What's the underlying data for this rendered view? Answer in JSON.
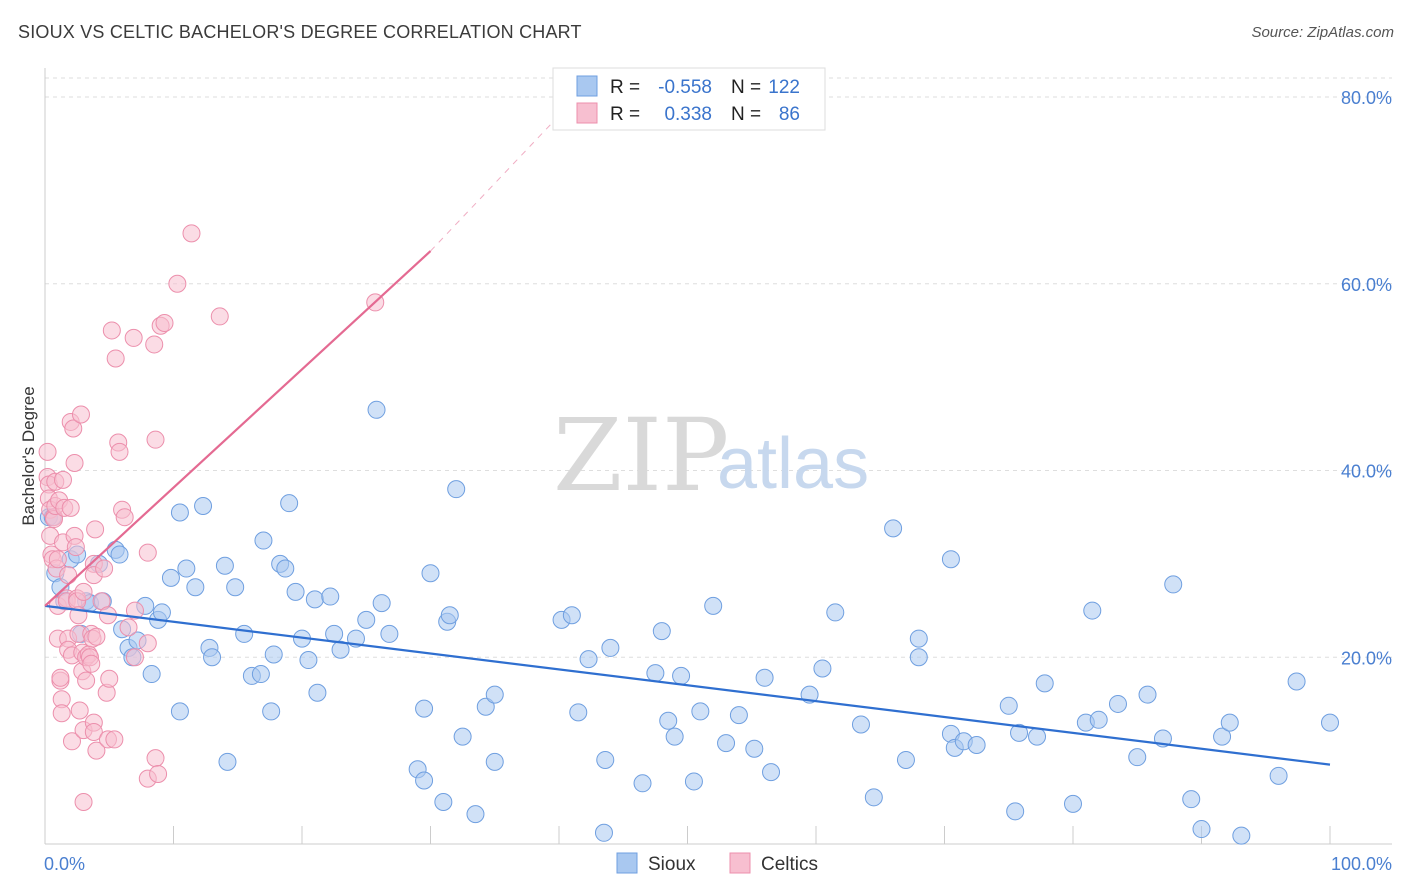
{
  "title": "SIOUX VS CELTIC BACHELOR'S DEGREE CORRELATION CHART",
  "source": "Source: ZipAtlas.com",
  "watermark": {
    "zip": "ZIP",
    "atlas": "atlas"
  },
  "legend": {
    "rows": [
      {
        "r_label": "R =",
        "r_value": "-0.558",
        "n_label": "N =",
        "n_value": "122",
        "color": "#a9c8f0",
        "stroke": "#6f9fe0"
      },
      {
        "r_label": "R =",
        "r_value": "0.338",
        "n_label": "N =",
        "n_value": "86",
        "color": "#f7bfd0",
        "stroke": "#ec8fac"
      }
    ]
  },
  "bottom_legend": [
    {
      "label": "Sioux",
      "color": "#a9c8f0",
      "stroke": "#6f9fe0"
    },
    {
      "label": "Celtics",
      "color": "#f7bfd0",
      "stroke": "#ec8fac"
    }
  ],
  "chart_data": {
    "type": "scatter",
    "title": "SIOUX VS CELTIC BACHELOR'S DEGREE CORRELATION CHART",
    "xlabel": "",
    "ylabel": "Bachelor's Degree",
    "xlim": [
      0,
      100
    ],
    "ylim": [
      0,
      82
    ],
    "x_tick_labels": [
      "0.0%",
      "100.0%"
    ],
    "y_ticks": [
      20,
      40,
      60,
      80
    ],
    "y_tick_labels": [
      "20.0%",
      "40.0%",
      "60.0%",
      "80.0%"
    ],
    "grid": true,
    "legend_position": "top-center",
    "series": [
      {
        "name": "Sioux",
        "color": "#a9c8f0",
        "stroke": "#6f9fe0",
        "r": -0.558,
        "n": 122,
        "trend": {
          "x": [
            0,
            100
          ],
          "y": [
            25.5,
            8.5
          ],
          "color": "#2f6fd0"
        },
        "points": [
          [
            0.3,
            35
          ],
          [
            0.6,
            35
          ],
          [
            0.8,
            29
          ],
          [
            1.2,
            27.5
          ],
          [
            1.5,
            26
          ],
          [
            2,
            30.5
          ],
          [
            2.5,
            31
          ],
          [
            2.8,
            22.5
          ],
          [
            3.2,
            26
          ],
          [
            3.5,
            25.8
          ],
          [
            4.2,
            30
          ],
          [
            4.5,
            26
          ],
          [
            5.5,
            31.5
          ],
          [
            5.8,
            31
          ],
          [
            6,
            23
          ],
          [
            6.5,
            21
          ],
          [
            6.8,
            20
          ],
          [
            7.2,
            21.8
          ],
          [
            7.8,
            25.5
          ],
          [
            8.3,
            18.2
          ],
          [
            8.8,
            24
          ],
          [
            9.1,
            24.8
          ],
          [
            9.8,
            28.5
          ],
          [
            10.5,
            14.2
          ],
          [
            10.5,
            35.5
          ],
          [
            11,
            29.5
          ],
          [
            11.7,
            27.5
          ],
          [
            12.3,
            36.2
          ],
          [
            12.8,
            21
          ],
          [
            13,
            20
          ],
          [
            14,
            29.8
          ],
          [
            14.2,
            8.8
          ],
          [
            14.8,
            27.5
          ],
          [
            15.5,
            22.5
          ],
          [
            16.1,
            18
          ],
          [
            16.8,
            18.2
          ],
          [
            17,
            32.5
          ],
          [
            17.6,
            14.2
          ],
          [
            17.8,
            20.3
          ],
          [
            18.3,
            30
          ],
          [
            18.7,
            29.5
          ],
          [
            19,
            36.5
          ],
          [
            19.5,
            27
          ],
          [
            20,
            22
          ],
          [
            20.5,
            19.7
          ],
          [
            21,
            26.2
          ],
          [
            21.2,
            16.2
          ],
          [
            22.2,
            26.5
          ],
          [
            22.5,
            22.5
          ],
          [
            23,
            20.8
          ],
          [
            24.2,
            22
          ],
          [
            25,
            24
          ],
          [
            25.8,
            46.5
          ],
          [
            26.2,
            25.8
          ],
          [
            26.8,
            22.5
          ],
          [
            29,
            8
          ],
          [
            29.5,
            6.8
          ],
          [
            29.5,
            14.5
          ],
          [
            30,
            29
          ],
          [
            31,
            4.5
          ],
          [
            31.3,
            23.8
          ],
          [
            31.5,
            24.5
          ],
          [
            32,
            38
          ],
          [
            32.5,
            11.5
          ],
          [
            33.5,
            3.2
          ],
          [
            34.3,
            14.7
          ],
          [
            35,
            16
          ],
          [
            35,
            8.8
          ],
          [
            40.2,
            24
          ],
          [
            41,
            24.5
          ],
          [
            41.5,
            14.1
          ],
          [
            42.3,
            19.8
          ],
          [
            43.5,
            1.2
          ],
          [
            43.6,
            9
          ],
          [
            44,
            21
          ],
          [
            46.5,
            6.5
          ],
          [
            47.5,
            18.3
          ],
          [
            48,
            22.8
          ],
          [
            48.5,
            13.2
          ],
          [
            49,
            11.5
          ],
          [
            49.5,
            18
          ],
          [
            50.5,
            6.7
          ],
          [
            51,
            14.2
          ],
          [
            52,
            25.5
          ],
          [
            53,
            10.8
          ],
          [
            54,
            13.8
          ],
          [
            55.2,
            10.2
          ],
          [
            56,
            17.8
          ],
          [
            56.5,
            7.7
          ],
          [
            59.5,
            16
          ],
          [
            60.5,
            18.8
          ],
          [
            61.5,
            24.8
          ],
          [
            63.5,
            12.8
          ],
          [
            64.5,
            5
          ],
          [
            66,
            33.8
          ],
          [
            67,
            9
          ],
          [
            68,
            22
          ],
          [
            68,
            20
          ],
          [
            70.5,
            30.5
          ],
          [
            70.5,
            11.8
          ],
          [
            70.8,
            10.3
          ],
          [
            71.5,
            11
          ],
          [
            72.5,
            10.6
          ],
          [
            75,
            14.8
          ],
          [
            75.5,
            3.5
          ],
          [
            75.8,
            11.9
          ],
          [
            77.2,
            11.5
          ],
          [
            77.8,
            17.2
          ],
          [
            80,
            4.3
          ],
          [
            81,
            13
          ],
          [
            81.5,
            25
          ],
          [
            82,
            13.3
          ],
          [
            83.5,
            15
          ],
          [
            85,
            9.3
          ],
          [
            85.8,
            16
          ],
          [
            87,
            11.3
          ],
          [
            87.8,
            27.8
          ],
          [
            89.2,
            4.8
          ],
          [
            90,
            1.6
          ],
          [
            91.6,
            11.5
          ],
          [
            92.2,
            13
          ],
          [
            93.1,
            0.9
          ],
          [
            96,
            7.3
          ],
          [
            97.4,
            17.4
          ],
          [
            100,
            13
          ]
        ]
      },
      {
        "name": "Celtics",
        "color": "#f7bfd0",
        "stroke": "#ec8fac",
        "r": 0.338,
        "n": 86,
        "trend": {
          "x": [
            0,
            30
          ],
          "y": [
            25.5,
            63.5
          ],
          "dash_x": [
            30,
            40
          ],
          "dash_y": [
            63.5,
            78
          ],
          "color": "#e46a92"
        },
        "points": [
          [
            0.2,
            42
          ],
          [
            0.2,
            39.3
          ],
          [
            0.3,
            38.5
          ],
          [
            0.3,
            37
          ],
          [
            0.4,
            35.8
          ],
          [
            0.4,
            33
          ],
          [
            0.5,
            31
          ],
          [
            0.6,
            30.5
          ],
          [
            0.7,
            35
          ],
          [
            0.7,
            34.8
          ],
          [
            0.8,
            36.2
          ],
          [
            0.8,
            38.8
          ],
          [
            0.9,
            29.5
          ],
          [
            1,
            30.5
          ],
          [
            1,
            25.5
          ],
          [
            1,
            22
          ],
          [
            1.1,
            36.8
          ],
          [
            1.2,
            17.5
          ],
          [
            1.2,
            17.8
          ],
          [
            1.3,
            15.5
          ],
          [
            1.3,
            14
          ],
          [
            1.4,
            39
          ],
          [
            1.4,
            32.3
          ],
          [
            1.5,
            36
          ],
          [
            1.7,
            26.3
          ],
          [
            1.7,
            26
          ],
          [
            1.8,
            28.8
          ],
          [
            1.8,
            22
          ],
          [
            1.8,
            20.8
          ],
          [
            2,
            45.2
          ],
          [
            2,
            36
          ],
          [
            2.1,
            20.2
          ],
          [
            2.1,
            11
          ],
          [
            2.2,
            44.5
          ],
          [
            2.3,
            40.8
          ],
          [
            2.3,
            33
          ],
          [
            2.4,
            31.8
          ],
          [
            2.5,
            26.3
          ],
          [
            2.5,
            26
          ],
          [
            2.6,
            24.5
          ],
          [
            2.6,
            22.5
          ],
          [
            2.7,
            14.3
          ],
          [
            2.8,
            46
          ],
          [
            2.9,
            20.5
          ],
          [
            2.9,
            18.5
          ],
          [
            3,
            27
          ],
          [
            3,
            4.5
          ],
          [
            3,
            12.2
          ],
          [
            3.2,
            17.5
          ],
          [
            3.2,
            20
          ],
          [
            3.4,
            20.3
          ],
          [
            3.5,
            20
          ],
          [
            3.6,
            22.5
          ],
          [
            3.6,
            19.3
          ],
          [
            3.7,
            22
          ],
          [
            3.8,
            30
          ],
          [
            3.8,
            28.8
          ],
          [
            3.8,
            13
          ],
          [
            3.8,
            12
          ],
          [
            3.9,
            33.7
          ],
          [
            4,
            10
          ],
          [
            4,
            22.2
          ],
          [
            4.4,
            26
          ],
          [
            4.6,
            29.5
          ],
          [
            4.8,
            16.2
          ],
          [
            4.9,
            24.5
          ],
          [
            4.9,
            11.2
          ],
          [
            5,
            17.7
          ],
          [
            5.2,
            55
          ],
          [
            5.4,
            11.2
          ],
          [
            5.5,
            52
          ],
          [
            5.7,
            43
          ],
          [
            5.8,
            42
          ],
          [
            6,
            35.8
          ],
          [
            6.2,
            35
          ],
          [
            6.5,
            23.2
          ],
          [
            6.9,
            54.2
          ],
          [
            7,
            25
          ],
          [
            7,
            20
          ],
          [
            8,
            21.5
          ],
          [
            8,
            31.2
          ],
          [
            8.5,
            53.5
          ],
          [
            8,
            7
          ],
          [
            8.6,
            9.2
          ],
          [
            8.6,
            43.3
          ],
          [
            8.8,
            7.5
          ],
          [
            9,
            55.5
          ],
          [
            9.3,
            55.8
          ],
          [
            10.3,
            60
          ],
          [
            11.4,
            65.4
          ],
          [
            13.6,
            56.5
          ],
          [
            25.7,
            58
          ]
        ]
      }
    ]
  }
}
